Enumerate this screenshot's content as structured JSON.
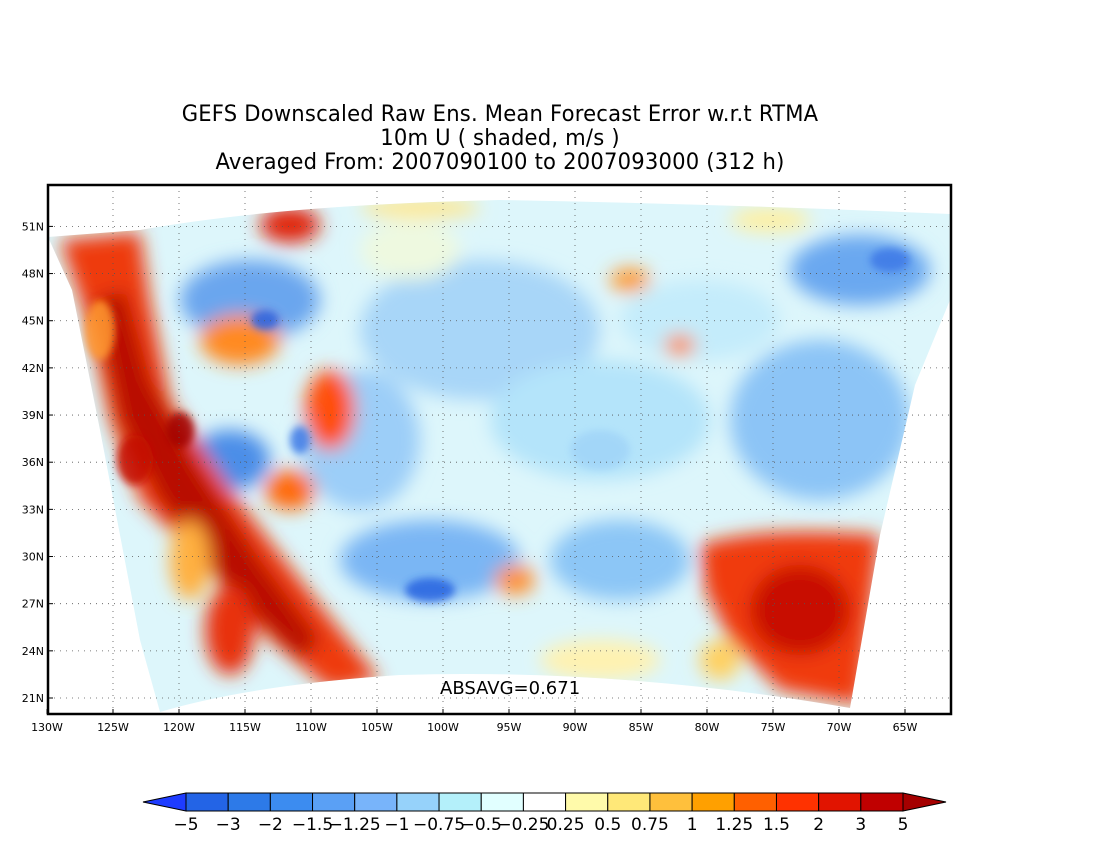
{
  "title": {
    "line1": "GEFS Downscaled Raw Ens. Mean Forecast Error w.r.t RTMA",
    "line2": "10m U ( shaded, m/s )",
    "line3": "Averaged From: 2007090100 to 2007093000 (312 h)"
  },
  "annotation": "ABSAVG=0.671",
  "map": {
    "lon_range": [
      -130,
      -60
    ],
    "lat_range": [
      19.5,
      52.5
    ],
    "lon_ticks": [
      {
        "value": -130,
        "label": "130W"
      },
      {
        "value": -125,
        "label": "125W"
      },
      {
        "value": -120,
        "label": "120W"
      },
      {
        "value": -115,
        "label": "115W"
      },
      {
        "value": -110,
        "label": "110W"
      },
      {
        "value": -105,
        "label": "105W"
      },
      {
        "value": -100,
        "label": "100W"
      },
      {
        "value": -95,
        "label": "95W"
      },
      {
        "value": -90,
        "label": "90W"
      },
      {
        "value": -85,
        "label": "85W"
      },
      {
        "value": -80,
        "label": "80W"
      },
      {
        "value": -75,
        "label": "75W"
      },
      {
        "value": -70,
        "label": "70W"
      },
      {
        "value": -65,
        "label": "65W"
      }
    ],
    "lat_ticks": [
      {
        "value": 21,
        "label": "21N"
      },
      {
        "value": 24,
        "label": "24N"
      },
      {
        "value": 27,
        "label": "27N"
      },
      {
        "value": 30,
        "label": "30N"
      },
      {
        "value": 33,
        "label": "33N"
      },
      {
        "value": 36,
        "label": "36N"
      },
      {
        "value": 39,
        "label": "39N"
      },
      {
        "value": 42,
        "label": "42N"
      },
      {
        "value": 45,
        "label": "45N"
      },
      {
        "value": 48,
        "label": "48N"
      },
      {
        "value": 51,
        "label": "51N"
      }
    ],
    "grid": true
  },
  "colorbar": {
    "labels": [
      "-5",
      "-3",
      "-2",
      "-1.5",
      "-1.25",
      "-1",
      "-0.75",
      "-0.5",
      "-0.25",
      "0.25",
      "0.5",
      "0.75",
      "1",
      "1.25",
      "1.5",
      "2",
      "3",
      "5"
    ],
    "colors": [
      "#1e3cff",
      "#2364e6",
      "#2d7ae8",
      "#3c8cf0",
      "#5aa0f5",
      "#78b4fa",
      "#96d2fa",
      "#b4f0fa",
      "#e1ffff",
      "#ffffff",
      "#fffaaa",
      "#ffe878",
      "#ffc03c",
      "#ffa000",
      "#ff6000",
      "#ff3200",
      "#e11400",
      "#c00000",
      "#a50000"
    ]
  }
}
